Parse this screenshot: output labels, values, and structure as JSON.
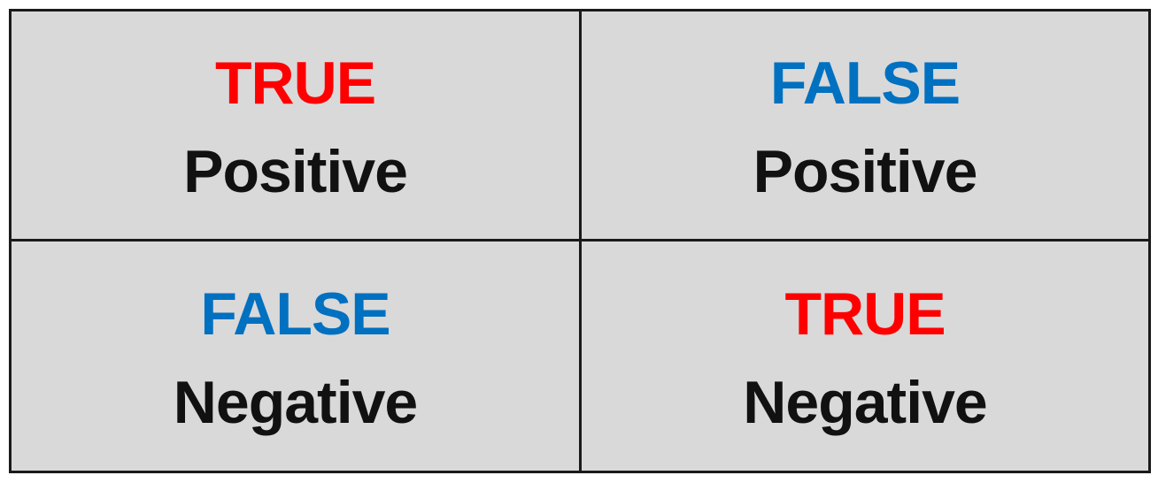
{
  "matrix": {
    "cells": [
      {
        "verdict": "TRUE",
        "outcome": "Positive",
        "verdict_color": "#ff0000"
      },
      {
        "verdict": "FALSE",
        "outcome": "Positive",
        "verdict_color": "#0070c0"
      },
      {
        "verdict": "FALSE",
        "outcome": "Negative",
        "verdict_color": "#0070c0"
      },
      {
        "verdict": "TRUE",
        "outcome": "Negative",
        "verdict_color": "#ff0000"
      }
    ]
  },
  "colors": {
    "background": "#d9d9d9",
    "border": "#1a1a1a",
    "true_color": "#ff0000",
    "false_color": "#0070c0",
    "text": "#111111"
  }
}
